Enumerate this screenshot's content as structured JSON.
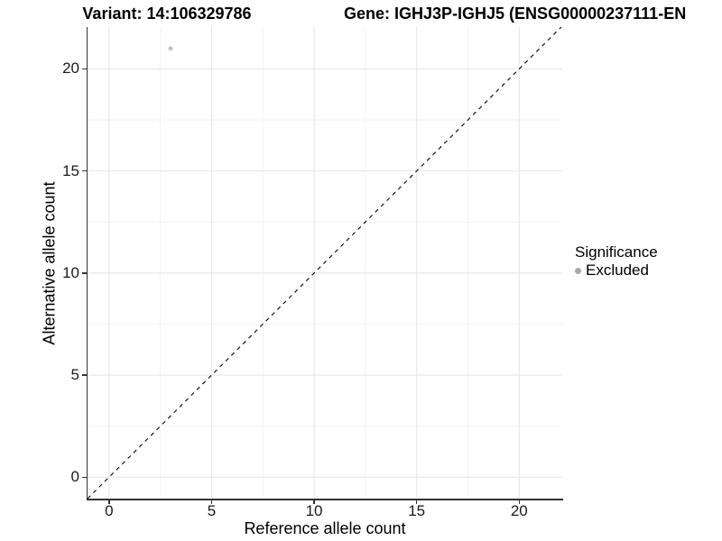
{
  "titles": {
    "variant": "Variant: 14:106329786",
    "gene": "Gene: IGHJ3P-IGHJ5 (ENSG00000237111-EN"
  },
  "chart_data": {
    "type": "scatter",
    "title": "Variant: 14:106329786",
    "secondary_title": "Gene: IGHJ3P-IGHJ5 (ENSG00000237111-EN",
    "xlabel": "Reference allele count",
    "ylabel": "Alternative allele count",
    "xlim": [
      -1.05,
      22.1
    ],
    "ylim": [
      -1.05,
      22.05
    ],
    "xticks": [
      0,
      5,
      10,
      15,
      20
    ],
    "yticks": [
      0,
      5,
      10,
      15,
      20
    ],
    "grid": "major+minor",
    "identity_line": {
      "style": "dashed",
      "slope": 1,
      "intercept": 0
    },
    "points": [
      {
        "x": 3,
        "y": 21,
        "significance": "Excluded"
      }
    ],
    "legend": {
      "title": "Significance",
      "position": "right",
      "items": [
        {
          "label": "Excluded",
          "color": "#a9a9a9"
        }
      ]
    }
  },
  "colors": {
    "background": "#ffffff",
    "axis": "#333333",
    "grid_major": "#e7e7e7",
    "grid_minor": "#f2f2f2",
    "identity_line": "#000000",
    "point": "#b9b9b9",
    "legend_key": "#a4a4a4"
  }
}
